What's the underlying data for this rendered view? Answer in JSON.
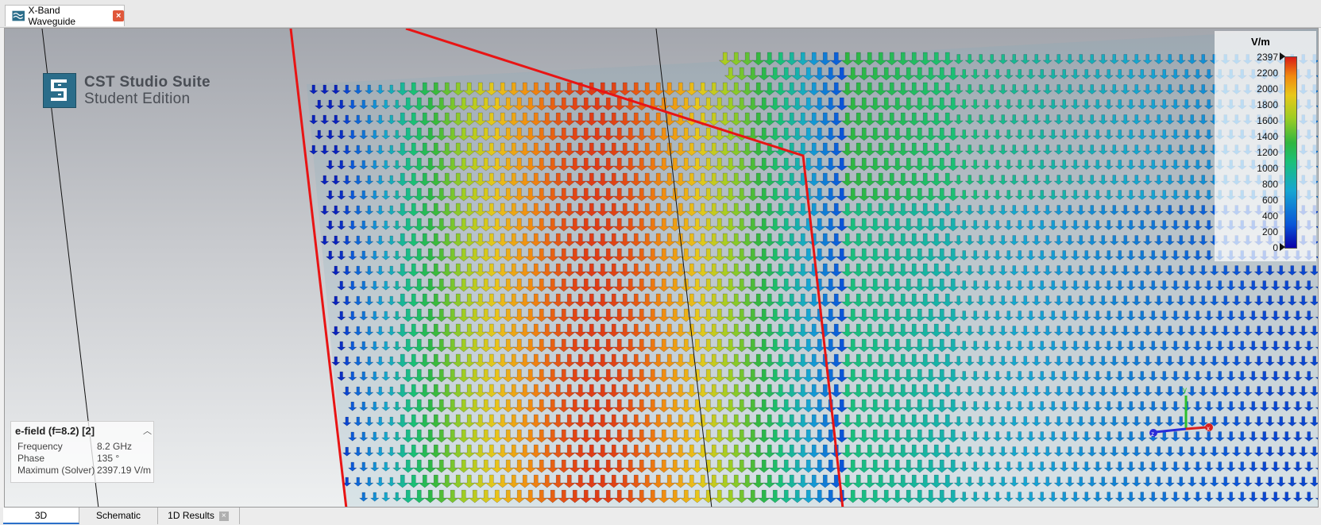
{
  "document_tab": {
    "label": "X-Band Waveguide",
    "icon": "waveguide-icon"
  },
  "logo": {
    "title": "CST Studio Suite",
    "subtitle": "Student Edition"
  },
  "legend": {
    "unit": "V/m",
    "ticks": [
      "2397",
      "2200",
      "2000",
      "1800",
      "1600",
      "1400",
      "1200",
      "1000",
      "800",
      "600",
      "400",
      "200",
      "0"
    ],
    "max": 2397,
    "min": 0
  },
  "info_panel": {
    "title": "e-field (f=8.2) [2]",
    "rows": [
      {
        "label": "Frequency",
        "value": "8.2 GHz"
      },
      {
        "label": "Phase",
        "value": "135 °"
      },
      {
        "label": "Maximum (Solver)",
        "value": "2397.19 V/m"
      }
    ]
  },
  "axes": {
    "y": "y",
    "z": "z",
    "x": "x"
  },
  "colors": {
    "low": "#0a00a8",
    "mid": "#1ac07a",
    "high": "#d81c18",
    "outline": "#e81414"
  },
  "bottom_tabs": [
    {
      "label": "3D",
      "active": true
    },
    {
      "label": "Schematic",
      "active": false
    },
    {
      "label": "1D Results",
      "active": false,
      "closable": true
    }
  ]
}
